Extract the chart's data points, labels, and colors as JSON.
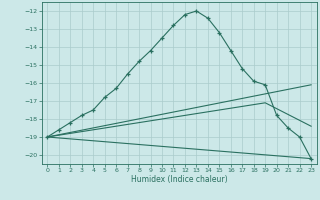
{
  "title": "",
  "xlabel": "Humidex (Indice chaleur)",
  "background_color": "#cce8e8",
  "grid_color": "#aacccc",
  "line_color": "#2a7060",
  "xlim": [
    -0.5,
    23.5
  ],
  "ylim": [
    -20.5,
    -11.5
  ],
  "yticks": [
    -20,
    -19,
    -18,
    -17,
    -16,
    -15,
    -14,
    -13,
    -12
  ],
  "xticks": [
    0,
    1,
    2,
    3,
    4,
    5,
    6,
    7,
    8,
    9,
    10,
    11,
    12,
    13,
    14,
    15,
    16,
    17,
    18,
    19,
    20,
    21,
    22,
    23
  ],
  "curve1_x": [
    0,
    1,
    2,
    3,
    4,
    5,
    6,
    7,
    8,
    9,
    10,
    11,
    12,
    13,
    14,
    15,
    16,
    17,
    18,
    19,
    20,
    21,
    22,
    23
  ],
  "curve1_y": [
    -19.0,
    -18.6,
    -18.2,
    -17.8,
    -17.5,
    -16.8,
    -16.3,
    -15.5,
    -14.8,
    -14.2,
    -13.5,
    -12.8,
    -12.2,
    -12.0,
    -12.4,
    -13.2,
    -14.2,
    -15.2,
    -15.9,
    -16.1,
    -17.8,
    -18.5,
    -19.0,
    -20.2
  ],
  "line1_x": [
    0,
    23
  ],
  "line1_y": [
    -19.0,
    -16.1
  ],
  "line2_x": [
    0,
    19,
    23
  ],
  "line2_y": [
    -19.0,
    -17.1,
    -18.4
  ],
  "line3_x": [
    0,
    23
  ],
  "line3_y": [
    -19.0,
    -20.2
  ]
}
